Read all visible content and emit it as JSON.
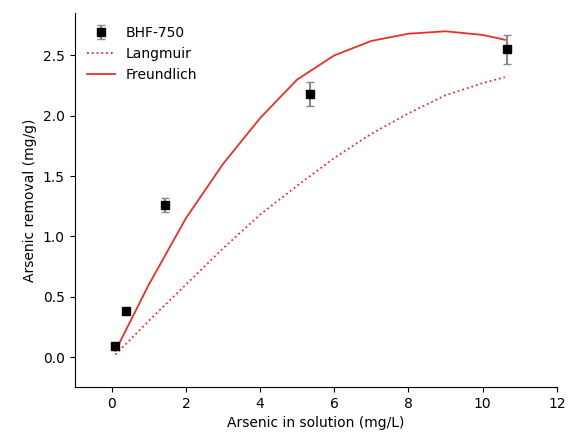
{
  "chart_data": {
    "type": "scatter",
    "x_label": "Arsenic in solution (mg/L)",
    "y_label": "Arsenic removal (mg/g)",
    "xlim": [
      -1,
      12
    ],
    "xticks": [
      0,
      2,
      4,
      6,
      8,
      10,
      12
    ],
    "ylim": [
      -0.25,
      2.85
    ],
    "yticks": [
      {
        "value": 0.0,
        "label": "0.0"
      },
      {
        "value": 0.5,
        "label": "0.5"
      },
      {
        "value": 1.0,
        "label": "1.0"
      },
      {
        "value": 1.5,
        "label": "1.5"
      },
      {
        "value": 2.0,
        "label": "2.0"
      },
      {
        "value": 2.5,
        "label": "2.5"
      }
    ],
    "legend": "upper left",
    "series": [
      {
        "name": "BHF-750",
        "type": "scatter",
        "color": "#000000",
        "marker": "square",
        "x": [
          0.1,
          0.38,
          1.45,
          5.35,
          10.65
        ],
        "values": [
          0.09,
          0.38,
          1.26,
          2.18,
          2.55
        ],
        "errors": [
          0.02,
          0.02,
          0.06,
          0.1,
          0.12
        ]
      },
      {
        "name": "Langmuir",
        "type": "line",
        "color": "#e8302a",
        "line_style": "dotted",
        "x": [
          0.1,
          1,
          2,
          3,
          4,
          5,
          6,
          7,
          8,
          9,
          10,
          10.6
        ],
        "values": [
          0.02,
          0.3,
          0.6,
          0.9,
          1.18,
          1.42,
          1.65,
          1.85,
          2.02,
          2.17,
          2.27,
          2.32
        ]
      },
      {
        "name": "Freundlich",
        "type": "line",
        "color": "#e8302a",
        "line_style": "solid",
        "x": [
          0.1,
          1,
          2,
          3,
          4,
          5,
          6,
          7,
          8,
          9,
          10,
          10.6
        ],
        "values": [
          0.05,
          0.6,
          1.15,
          1.6,
          1.98,
          2.3,
          2.5,
          2.62,
          2.68,
          2.7,
          2.67,
          2.63
        ]
      }
    ]
  }
}
